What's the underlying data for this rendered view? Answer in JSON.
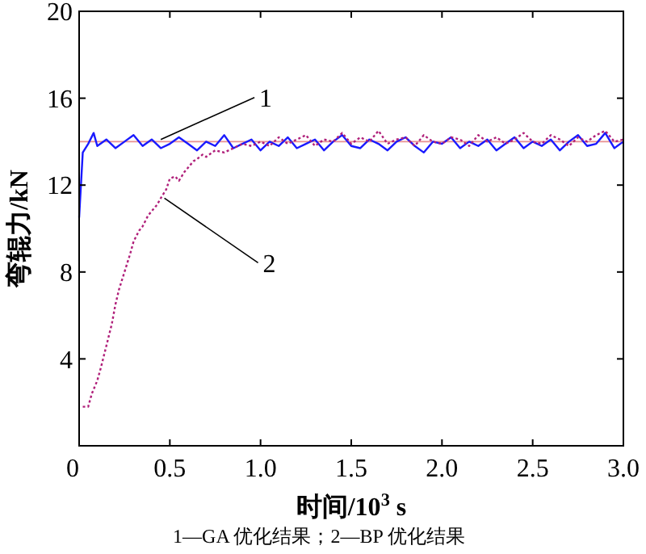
{
  "chart_data": {
    "type": "line",
    "xlabel": "时间/10$^{3}$ s",
    "ylabel": "弯辊力/kN",
    "xlim": [
      0,
      3.0
    ],
    "ylim": [
      0,
      20
    ],
    "xticks": [
      0,
      {
        "value": 0.5,
        "label": "0.5"
      },
      {
        "value": 1,
        "label": "1.0"
      },
      {
        "value": 1.5,
        "label": "1.5"
      },
      {
        "value": 2,
        "label": "2.0"
      },
      {
        "value": 2.5,
        "label": "2.5"
      },
      {
        "value": 3,
        "label": "3.0"
      }
    ],
    "yticks": [
      4,
      8,
      12,
      16,
      20
    ],
    "grid": false,
    "marker": "none",
    "ref_lines": [
      {
        "axis": "y",
        "value": 14,
        "color": "#e89090"
      }
    ],
    "annotations": [
      {
        "text": "1",
        "x": 0.45,
        "y": 14.1
      },
      {
        "text": "2",
        "x": 0.47,
        "y": 11.4
      },
      "1—GA 优化结果；2—BP 优化结果"
    ],
    "series": [
      {
        "color": "#1a1aff",
        "line_style": "solid",
        "x": [
          0,
          0.02,
          0.05,
          0.08,
          0.1,
          0.15,
          0.2,
          0.25,
          0.3,
          0.35,
          0.4,
          0.45,
          0.5,
          0.55,
          0.6,
          0.65,
          0.7,
          0.75,
          0.8,
          0.85,
          0.9,
          0.95,
          1.0,
          1.05,
          1.1,
          1.15,
          1.2,
          1.25,
          1.3,
          1.35,
          1.4,
          1.45,
          1.5,
          1.55,
          1.6,
          1.65,
          1.7,
          1.75,
          1.8,
          1.85,
          1.9,
          1.95,
          2.0,
          2.05,
          2.1,
          2.15,
          2.2,
          2.25,
          2.3,
          2.35,
          2.4,
          2.45,
          2.5,
          2.55,
          2.6,
          2.65,
          2.7,
          2.75,
          2.8,
          2.85,
          2.9,
          2.95,
          3.0
        ],
        "values": [
          10.5,
          13.5,
          13.9,
          14.4,
          13.8,
          14.1,
          13.7,
          14.0,
          14.3,
          13.8,
          14.1,
          13.7,
          13.9,
          14.2,
          13.9,
          13.6,
          14.0,
          13.8,
          14.3,
          13.7,
          13.9,
          14.1,
          13.6,
          14.0,
          13.8,
          14.2,
          13.7,
          13.9,
          14.1,
          13.6,
          14.0,
          14.3,
          13.8,
          13.7,
          14.1,
          13.9,
          13.6,
          14.0,
          14.2,
          13.8,
          13.5,
          14.0,
          13.9,
          14.2,
          13.7,
          14.0,
          13.8,
          14.1,
          13.6,
          13.9,
          14.2,
          13.7,
          14.0,
          13.8,
          14.1,
          13.6,
          14.0,
          14.3,
          13.8,
          13.9,
          14.4,
          13.7,
          14.0
        ]
      },
      {
        "color": "#b0207a",
        "line_style": "dotted",
        "x": [
          0.02,
          0.05,
          0.07,
          0.1,
          0.12,
          0.15,
          0.18,
          0.2,
          0.22,
          0.25,
          0.28,
          0.3,
          0.33,
          0.35,
          0.38,
          0.4,
          0.43,
          0.45,
          0.48,
          0.5,
          0.53,
          0.55,
          0.58,
          0.6,
          0.63,
          0.65,
          0.68,
          0.7,
          0.75,
          0.8,
          0.85,
          0.9,
          0.95,
          1.0,
          1.05,
          1.1,
          1.15,
          1.2,
          1.25,
          1.3,
          1.35,
          1.4,
          1.45,
          1.5,
          1.55,
          1.6,
          1.65,
          1.7,
          1.75,
          1.8,
          1.85,
          1.9,
          1.95,
          2.0,
          2.05,
          2.1,
          2.15,
          2.2,
          2.25,
          2.3,
          2.35,
          2.4,
          2.45,
          2.5,
          2.55,
          2.6,
          2.65,
          2.7,
          2.75,
          2.8,
          2.85,
          2.9,
          2.95,
          3.0
        ],
        "values": [
          1.8,
          1.8,
          2.4,
          3.0,
          3.6,
          4.6,
          5.6,
          6.5,
          7.2,
          8.0,
          8.8,
          9.4,
          9.9,
          10.1,
          10.6,
          10.8,
          11.1,
          11.4,
          11.8,
          12.3,
          12.4,
          12.2,
          12.6,
          12.8,
          13.1,
          13.2,
          13.4,
          13.3,
          13.6,
          13.5,
          13.7,
          13.9,
          13.8,
          14.0,
          13.8,
          14.2,
          13.9,
          14.1,
          14.3,
          13.8,
          14.1,
          14.0,
          14.4,
          13.9,
          14.2,
          14.0,
          14.5,
          13.9,
          14.1,
          14.2,
          13.8,
          14.3,
          14.0,
          13.9,
          14.2,
          14.1,
          13.8,
          14.3,
          14.0,
          14.2,
          13.9,
          14.1,
          14.4,
          14.0,
          13.9,
          14.3,
          14.1,
          13.8,
          14.2,
          14.0,
          14.3,
          14.5,
          14.0,
          14.1
        ]
      }
    ]
  }
}
